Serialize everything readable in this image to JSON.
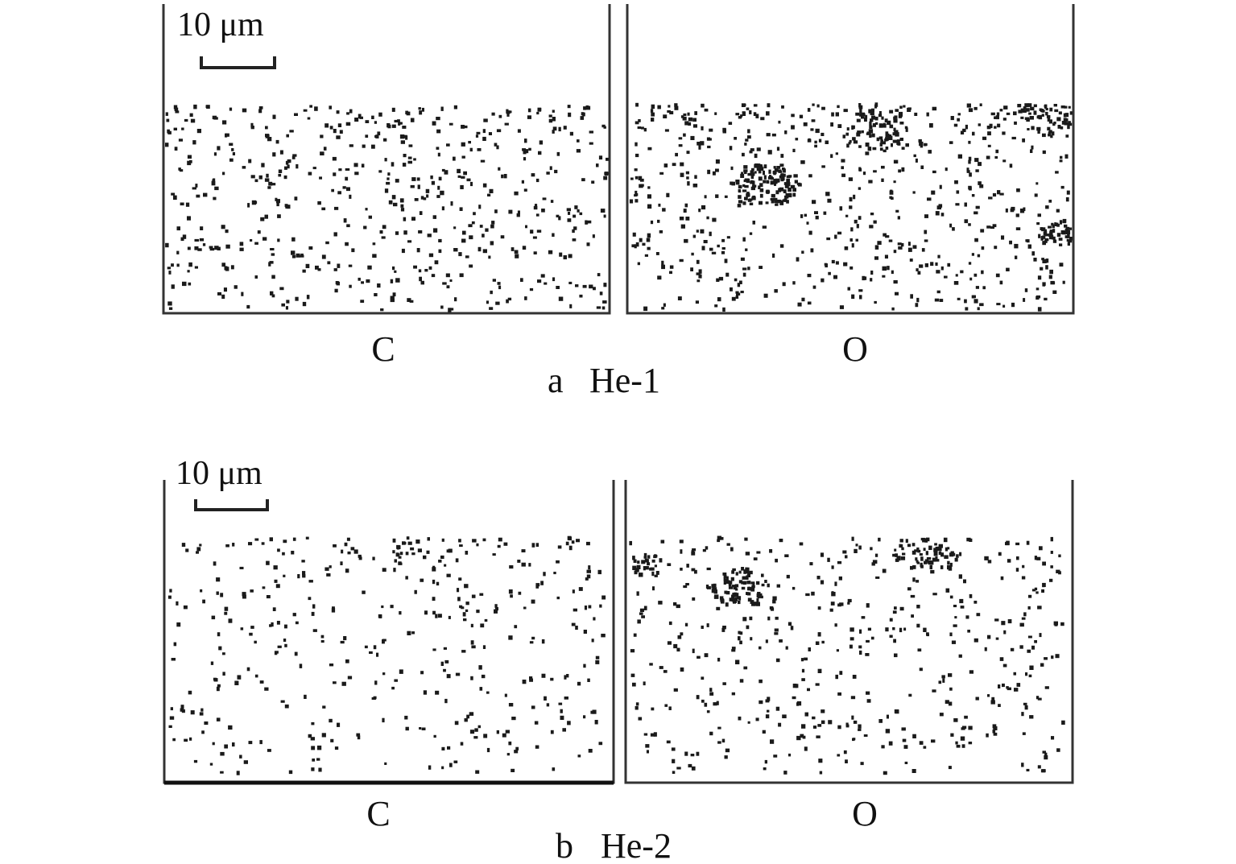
{
  "panels": [
    {
      "id": "a",
      "caption_letter": "a",
      "caption_name": "He-1",
      "scale_bar_label": "10 μm",
      "maps": [
        {
          "element": "C",
          "relative_density": 0.62,
          "clusters": []
        },
        {
          "element": "O",
          "relative_density": 1.0,
          "clusters": []
        }
      ]
    },
    {
      "id": "b",
      "caption_letter": "b",
      "caption_name": "He-2",
      "scale_bar_label": "10 μm",
      "maps": [
        {
          "element": "C",
          "relative_density": 0.45,
          "clusters": []
        },
        {
          "element": "O",
          "relative_density": 0.7,
          "clusters": []
        }
      ]
    }
  ],
  "colors": {
    "dot": "#1a1a1a",
    "frame": "#333333",
    "background": "#ffffff"
  }
}
